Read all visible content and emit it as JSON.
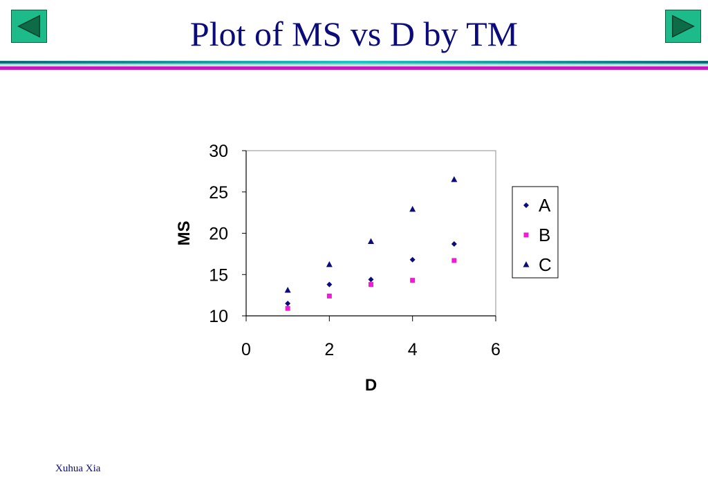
{
  "slide": {
    "title": "Plot of MS vs D by TM",
    "footer": "Xuhua Xia",
    "nav": {
      "prev_icon": "triangle-left-icon",
      "next_icon": "triangle-right-icon"
    }
  },
  "colors": {
    "title": "#0b0c7a",
    "nav_button": "#1dbb8a",
    "band_teal": "#1dc7c5",
    "band_magenta": "#c619be"
  },
  "chart_data": {
    "type": "scatter",
    "title": "",
    "xlabel": "D",
    "ylabel": "MS",
    "xlim": [
      0,
      6
    ],
    "ylim": [
      10,
      30
    ],
    "xticks": [
      0,
      2,
      4,
      6
    ],
    "yticks": [
      10,
      15,
      20,
      25,
      30
    ],
    "grid": false,
    "legend": "right",
    "series": [
      {
        "name": "A",
        "marker": "diamond",
        "color": "#0b0c7a",
        "x": [
          1,
          2,
          3,
          4,
          5
        ],
        "y": [
          11.5,
          13.8,
          14.4,
          16.8,
          18.7
        ]
      },
      {
        "name": "B",
        "marker": "square",
        "color": "#f01bd6",
        "x": [
          1,
          2,
          3,
          4,
          5
        ],
        "y": [
          10.9,
          12.4,
          13.8,
          14.3,
          16.7
        ]
      },
      {
        "name": "C",
        "marker": "triangle",
        "color": "#0b0c7a",
        "x": [
          1,
          2,
          3,
          4,
          5
        ],
        "y": [
          13.1,
          16.2,
          19.0,
          22.9,
          26.5
        ]
      }
    ]
  }
}
